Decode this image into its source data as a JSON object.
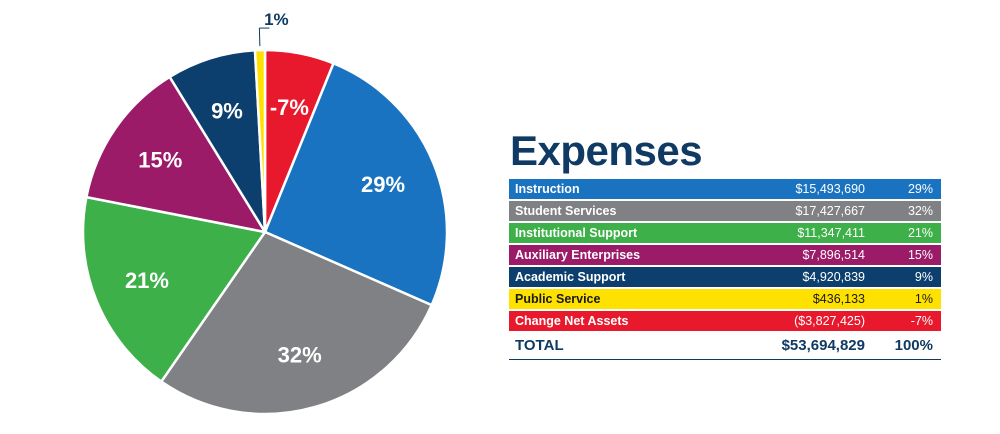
{
  "chart_data": {
    "type": "pie",
    "slices": [
      {
        "label": "-7%",
        "value": 7,
        "color": "#e8192c"
      },
      {
        "label": "29%",
        "value": 29,
        "color": "#1a73c0"
      },
      {
        "label": "32%",
        "value": 32,
        "color": "#808184"
      },
      {
        "label": "21%",
        "value": 21,
        "color": "#3db049"
      },
      {
        "label": "15%",
        "value": 15,
        "color": "#9b1b68"
      },
      {
        "label": "9%",
        "value": 9,
        "color": "#0c3f6e"
      },
      {
        "label": "1%",
        "value": 1,
        "color": "#ffe100"
      }
    ],
    "start_angle_deg": 0
  },
  "table": {
    "title": "Expenses",
    "rows": [
      {
        "name": "Instruction",
        "amount": "$15,493,690",
        "percent": "29%",
        "bg": "#1a73c0",
        "fg": "#ffffff"
      },
      {
        "name": "Student Services",
        "amount": "$17,427,667",
        "percent": "32%",
        "bg": "#808184",
        "fg": "#ffffff"
      },
      {
        "name": "Institutional Support",
        "amount": "$11,347,411",
        "percent": "21%",
        "bg": "#3db049",
        "fg": "#ffffff"
      },
      {
        "name": "Auxiliary Enterprises",
        "amount": "$7,896,514",
        "percent": "15%",
        "bg": "#9b1b68",
        "fg": "#ffffff"
      },
      {
        "name": "Academic Support",
        "amount": "$4,920,839",
        "percent": "9%",
        "bg": "#0c3f6e",
        "fg": "#ffffff"
      },
      {
        "name": "Public Service",
        "amount": "$436,133",
        "percent": "1%",
        "bg": "#ffe100",
        "fg": "#1a1a1a"
      },
      {
        "name": "Change Net Assets",
        "amount": "($3,827,425)",
        "percent": "-7%",
        "bg": "#e8192c",
        "fg": "#ffffff"
      }
    ],
    "total": {
      "name": "TOTAL",
      "amount": "$53,694,829",
      "percent": "100%"
    }
  }
}
